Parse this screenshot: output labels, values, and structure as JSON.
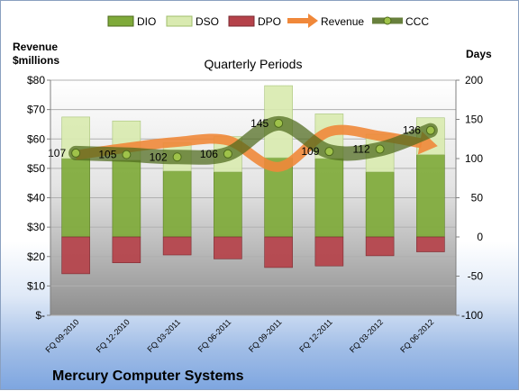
{
  "chart_data": {
    "type": "bar",
    "title": "Quarterly Periods",
    "footer_title": "Mercury Computer Systems",
    "y_left_label_line1": "Revenue",
    "y_left_label_line2": "$millions",
    "y_right_label": "Days",
    "y_left_ticks": [
      "$-",
      "$10",
      "$20",
      "$30",
      "$40",
      "$50",
      "$60",
      "$70",
      "$80"
    ],
    "y_left_lim": [
      0,
      80
    ],
    "y_right_ticks": [
      "-100",
      "-50",
      "0",
      "50",
      "100",
      "150",
      "200"
    ],
    "y_right_lim": [
      -100,
      200
    ],
    "categories": [
      "FQ 09-2010",
      "FQ 12-2010",
      "FQ 03-2011",
      "FQ 06-2011",
      "FQ 09-2011",
      "FQ 12-2011",
      "FQ 03-2012",
      "FQ 06-2012"
    ],
    "legend": [
      "DIO",
      "DSO",
      "DPO",
      "Revenue",
      "CCC"
    ],
    "colors": {
      "DIO": "#7faa3a",
      "DSO": "#d9eab0",
      "DPO": "#b5424a",
      "Revenue": "#f0883a",
      "CCC": "#4e6a1c"
    },
    "series": [
      {
        "name": "DIO",
        "axis": "right",
        "values": [
          100,
          98,
          84,
          83,
          101,
          100,
          83,
          105
        ]
      },
      {
        "name": "DSO",
        "axis": "right",
        "values": [
          53,
          50,
          36,
          45,
          92,
          57,
          48,
          47
        ]
      },
      {
        "name": "DPO",
        "axis": "right",
        "values": [
          -47,
          -33,
          -23,
          -28,
          -39,
          -37,
          -24,
          -19
        ]
      },
      {
        "name": "Revenue",
        "axis": "left",
        "values": [
          54.5,
          57,
          59,
          59.5,
          50.5,
          62.5,
          61,
          58
        ]
      },
      {
        "name": "CCC",
        "axis": "right",
        "values": [
          107,
          105,
          102,
          106,
          145,
          109,
          112,
          136
        ],
        "labels": [
          "107",
          "105",
          "102",
          "106",
          "145",
          "109",
          "112",
          "136"
        ]
      }
    ]
  }
}
